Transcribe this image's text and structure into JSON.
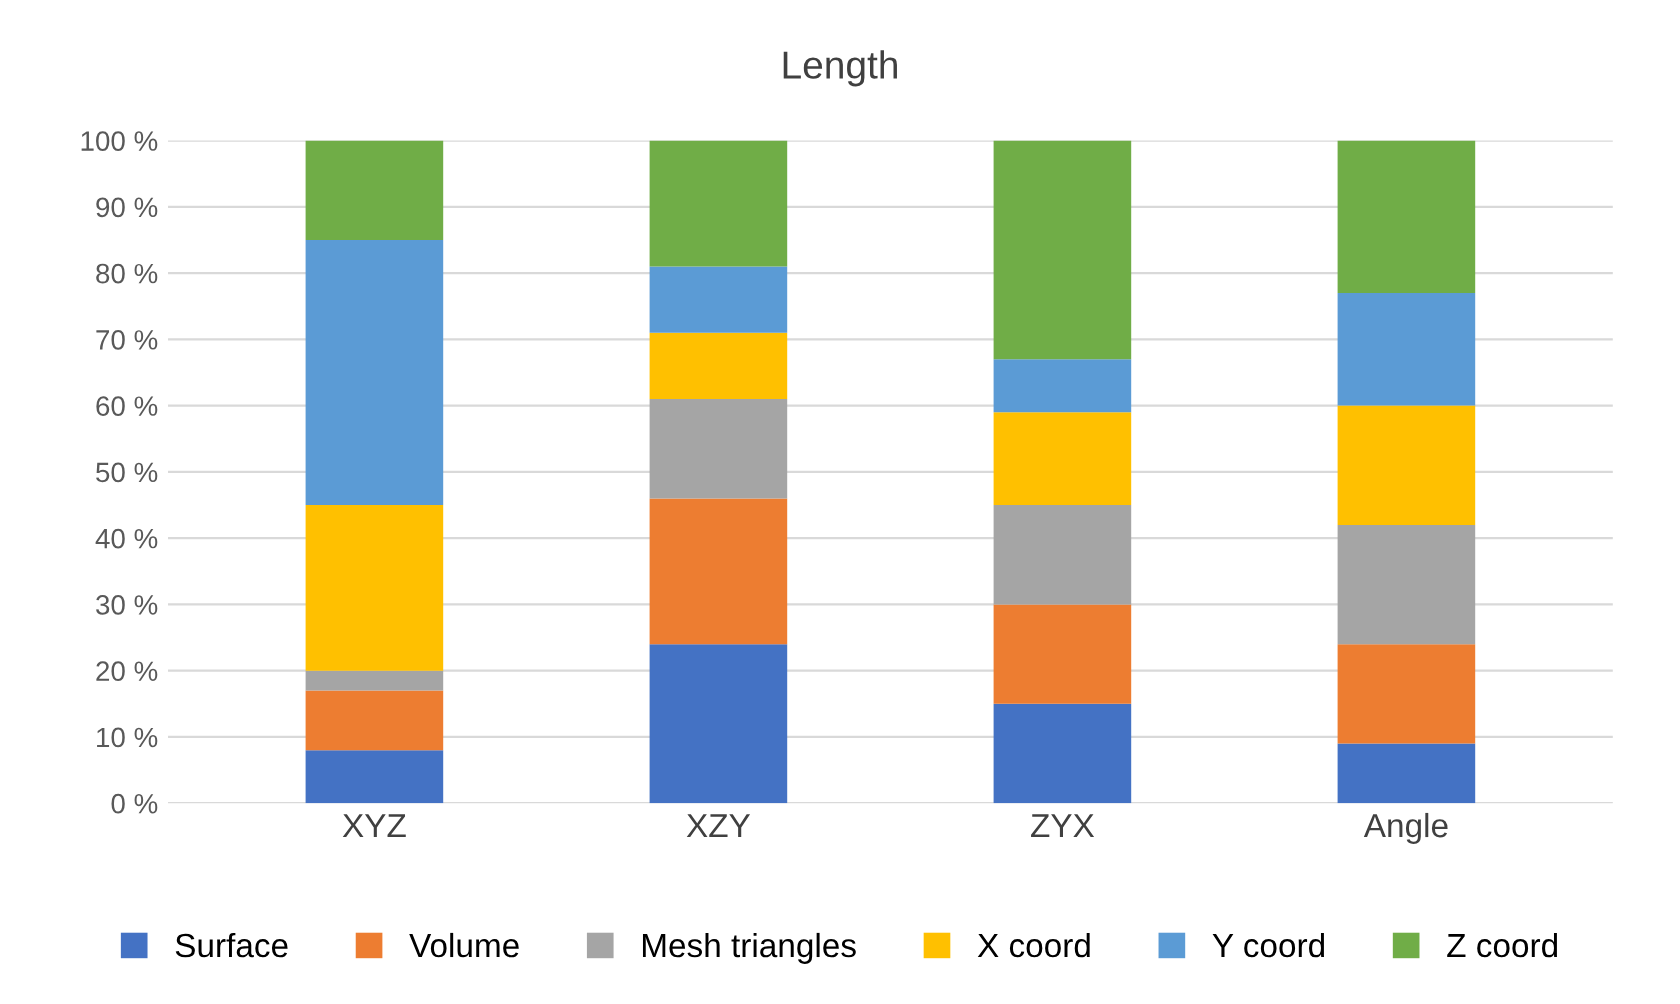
{
  "chart_data": {
    "type": "bar",
    "title": "Length",
    "stacked": true,
    "categories": [
      "XYZ",
      "XZY",
      "ZYX",
      "Angle"
    ],
    "series": [
      {
        "name": "Surface",
        "color": "#4472c4",
        "values": [
          8,
          24,
          15,
          9
        ]
      },
      {
        "name": "Volume",
        "color": "#ed7d31",
        "values": [
          9,
          22,
          15,
          15
        ]
      },
      {
        "name": "Mesh triangles",
        "color": "#a5a5a5",
        "values": [
          3,
          15,
          15,
          18
        ]
      },
      {
        "name": "X coord",
        "color": "#ffc000",
        "values": [
          25,
          10,
          14,
          18
        ]
      },
      {
        "name": "Y coord",
        "color": "#5b9bd5",
        "values": [
          40,
          10,
          8,
          17
        ]
      },
      {
        "name": "Z coord",
        "color": "#70ad47",
        "values": [
          15,
          19,
          33,
          23
        ]
      }
    ],
    "ylim": [
      0,
      100
    ],
    "yticks": [
      {
        "value": 0,
        "label": "0 %"
      },
      {
        "value": 10,
        "label": "10 %"
      },
      {
        "value": 20,
        "label": "20 %"
      },
      {
        "value": 30,
        "label": "30 %"
      },
      {
        "value": 40,
        "label": "40 %"
      },
      {
        "value": 50,
        "label": "50 %"
      },
      {
        "value": 60,
        "label": "60 %"
      },
      {
        "value": 70,
        "label": "70 %"
      },
      {
        "value": 80,
        "label": "80 %"
      },
      {
        "value": 90,
        "label": "90 %"
      },
      {
        "value": 100,
        "label": "100 %"
      }
    ],
    "grid": "y",
    "legend": "bottom"
  }
}
